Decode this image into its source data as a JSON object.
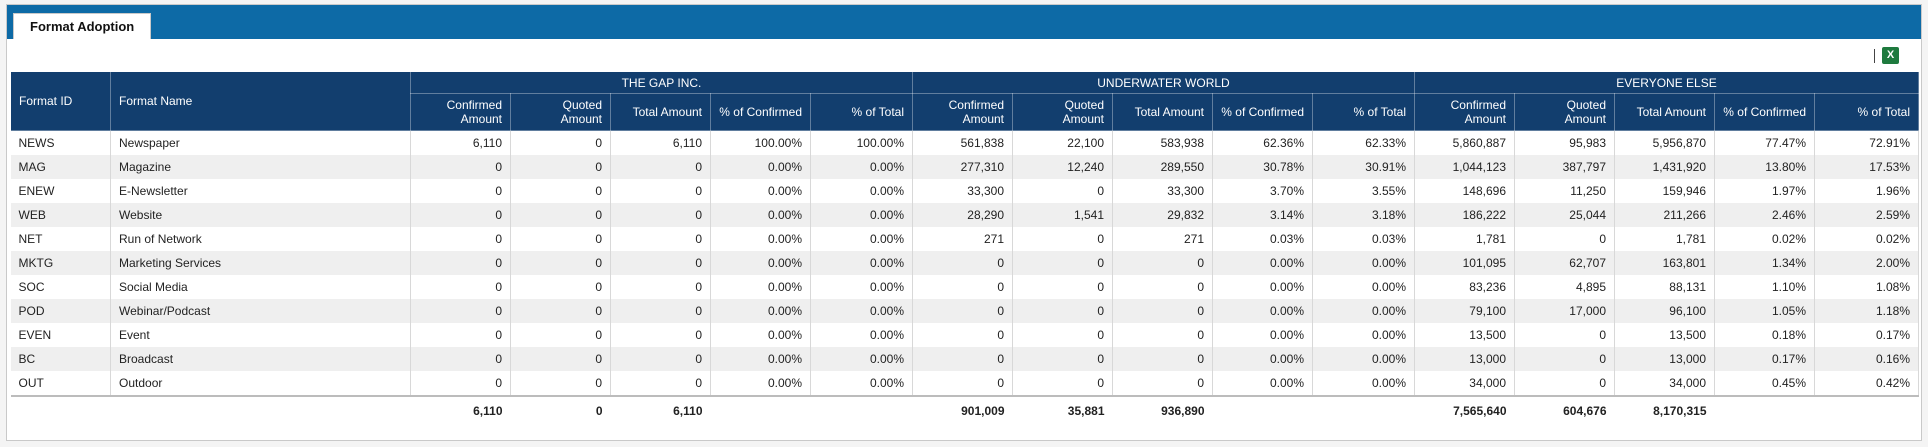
{
  "tab": {
    "label": "Format Adoption"
  },
  "toolbar": {
    "excel_icon_glyph": "X"
  },
  "columns": {
    "format_id": "Format ID",
    "format_name": "Format Name",
    "confirmed": "Confirmed Amount",
    "quoted": "Quoted Amount",
    "total": "Total Amount",
    "pct_confirmed": "% of Confirmed",
    "pct_total": "% of Total"
  },
  "groups": [
    "THE GAP INC.",
    "UNDERWATER WORLD",
    "EVERYONE ELSE"
  ],
  "rows": [
    {
      "id": "NEWS",
      "name": "Newspaper",
      "g": [
        [
          "6,110",
          "0",
          "6,110",
          "100.00%",
          "100.00%"
        ],
        [
          "561,838",
          "22,100",
          "583,938",
          "62.36%",
          "62.33%"
        ],
        [
          "5,860,887",
          "95,983",
          "5,956,870",
          "77.47%",
          "72.91%"
        ]
      ]
    },
    {
      "id": "MAG",
      "name": "Magazine",
      "g": [
        [
          "0",
          "0",
          "0",
          "0.00%",
          "0.00%"
        ],
        [
          "277,310",
          "12,240",
          "289,550",
          "30.78%",
          "30.91%"
        ],
        [
          "1,044,123",
          "387,797",
          "1,431,920",
          "13.80%",
          "17.53%"
        ]
      ]
    },
    {
      "id": "ENEW",
      "name": "E-Newsletter",
      "g": [
        [
          "0",
          "0",
          "0",
          "0.00%",
          "0.00%"
        ],
        [
          "33,300",
          "0",
          "33,300",
          "3.70%",
          "3.55%"
        ],
        [
          "148,696",
          "11,250",
          "159,946",
          "1.97%",
          "1.96%"
        ]
      ]
    },
    {
      "id": "WEB",
      "name": "Website",
      "g": [
        [
          "0",
          "0",
          "0",
          "0.00%",
          "0.00%"
        ],
        [
          "28,290",
          "1,541",
          "29,832",
          "3.14%",
          "3.18%"
        ],
        [
          "186,222",
          "25,044",
          "211,266",
          "2.46%",
          "2.59%"
        ]
      ]
    },
    {
      "id": "NET",
      "name": "Run of Network",
      "g": [
        [
          "0",
          "0",
          "0",
          "0.00%",
          "0.00%"
        ],
        [
          "271",
          "0",
          "271",
          "0.03%",
          "0.03%"
        ],
        [
          "1,781",
          "0",
          "1,781",
          "0.02%",
          "0.02%"
        ]
      ]
    },
    {
      "id": "MKTG",
      "name": "Marketing Services",
      "g": [
        [
          "0",
          "0",
          "0",
          "0.00%",
          "0.00%"
        ],
        [
          "0",
          "0",
          "0",
          "0.00%",
          "0.00%"
        ],
        [
          "101,095",
          "62,707",
          "163,801",
          "1.34%",
          "2.00%"
        ]
      ]
    },
    {
      "id": "SOC",
      "name": "Social Media",
      "g": [
        [
          "0",
          "0",
          "0",
          "0.00%",
          "0.00%"
        ],
        [
          "0",
          "0",
          "0",
          "0.00%",
          "0.00%"
        ],
        [
          "83,236",
          "4,895",
          "88,131",
          "1.10%",
          "1.08%"
        ]
      ]
    },
    {
      "id": "POD",
      "name": "Webinar/Podcast",
      "g": [
        [
          "0",
          "0",
          "0",
          "0.00%",
          "0.00%"
        ],
        [
          "0",
          "0",
          "0",
          "0.00%",
          "0.00%"
        ],
        [
          "79,100",
          "17,000",
          "96,100",
          "1.05%",
          "1.18%"
        ]
      ]
    },
    {
      "id": "EVEN",
      "name": "Event",
      "g": [
        [
          "0",
          "0",
          "0",
          "0.00%",
          "0.00%"
        ],
        [
          "0",
          "0",
          "0",
          "0.00%",
          "0.00%"
        ],
        [
          "13,500",
          "0",
          "13,500",
          "0.18%",
          "0.17%"
        ]
      ]
    },
    {
      "id": "BC",
      "name": "Broadcast",
      "g": [
        [
          "0",
          "0",
          "0",
          "0.00%",
          "0.00%"
        ],
        [
          "0",
          "0",
          "0",
          "0.00%",
          "0.00%"
        ],
        [
          "13,000",
          "0",
          "13,000",
          "0.17%",
          "0.16%"
        ]
      ]
    },
    {
      "id": "OUT",
      "name": "Outdoor",
      "g": [
        [
          "0",
          "0",
          "0",
          "0.00%",
          "0.00%"
        ],
        [
          "0",
          "0",
          "0",
          "0.00%",
          "0.00%"
        ],
        [
          "34,000",
          "0",
          "34,000",
          "0.45%",
          "0.42%"
        ]
      ]
    }
  ],
  "totals": [
    [
      "6,110",
      "0",
      "6,110"
    ],
    [
      "901,009",
      "35,881",
      "936,890"
    ],
    [
      "7,565,640",
      "604,676",
      "8,170,315"
    ]
  ],
  "colors": {
    "tabbar": "#0d6aa6",
    "header": "#123e6e",
    "excel": "#1e7a3e"
  }
}
